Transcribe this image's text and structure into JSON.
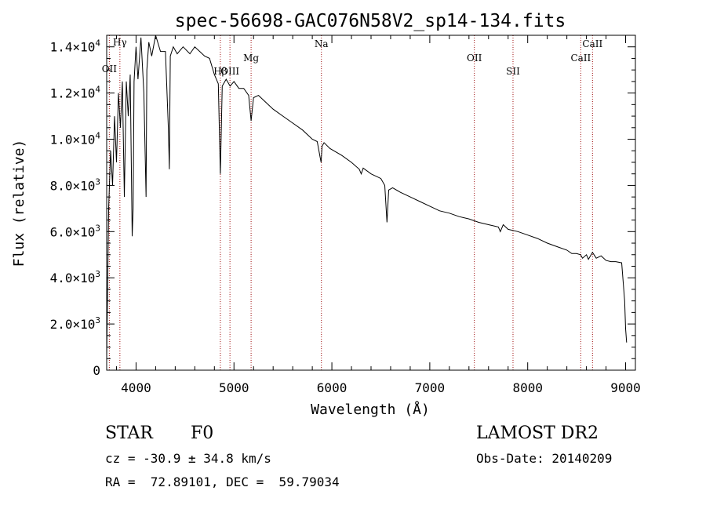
{
  "chart_data": {
    "type": "line",
    "title": "spec-56698-GAC076N58V2_sp14-134.fits",
    "xlabel": "Wavelength (Å)",
    "ylabel": "Flux (relative)",
    "xlim": [
      3700,
      9100
    ],
    "ylim": [
      0,
      14500
    ],
    "x_ticks": [
      4000,
      5000,
      6000,
      7000,
      8000,
      9000
    ],
    "y_ticks": [
      {
        "value": 0,
        "mant": "0",
        "exp": ""
      },
      {
        "value": 2000,
        "mant": "2.0×10",
        "exp": "3"
      },
      {
        "value": 4000,
        "mant": "4.0×10",
        "exp": "3"
      },
      {
        "value": 6000,
        "mant": "6.0×10",
        "exp": "3"
      },
      {
        "value": 8000,
        "mant": "8.0×10",
        "exp": "3"
      },
      {
        "value": 10000,
        "mant": "1.0×10",
        "exp": "4"
      },
      {
        "value": 12000,
        "mant": "1.2×10",
        "exp": "4"
      },
      {
        "value": 14000,
        "mant": "1.4×10",
        "exp": "4"
      }
    ],
    "series": [
      {
        "x": [
          3700,
          3720,
          3740,
          3760,
          3780,
          3800,
          3820,
          3840,
          3860,
          3880,
          3900,
          3920,
          3940,
          3960,
          3970,
          3980,
          4000,
          4020,
          4050,
          4080,
          4102,
          4110,
          4130,
          4160,
          4200,
          4250,
          4300,
          4330,
          4340,
          4350,
          4380,
          4420,
          4480,
          4550,
          4600,
          4650,
          4700,
          4750,
          4800,
          4840,
          4861,
          4880,
          4920,
          4960,
          5000,
          5050,
          5100,
          5150,
          5175,
          5200,
          5250,
          5300,
          5400,
          5500,
          5600,
          5700,
          5800,
          5850,
          5890,
          5900,
          5920,
          5980,
          6100,
          6200,
          6280,
          6300,
          6320,
          6400,
          6500,
          6540,
          6563,
          6580,
          6620,
          6700,
          6800,
          6900,
          7000,
          7100,
          7200,
          7300,
          7400,
          7500,
          7600,
          7700,
          7720,
          7750,
          7800,
          7900,
          8000,
          8100,
          8200,
          8300,
          8400,
          8450,
          8498,
          8540,
          8560,
          8600,
          8620,
          8662,
          8700,
          8750,
          8800,
          8850,
          8900,
          8960,
          8990,
          9000,
          9010
        ],
        "y": [
          500,
          7000,
          9500,
          8000,
          11000,
          9000,
          12000,
          10500,
          12500,
          7500,
          12500,
          11000,
          12800,
          5800,
          7000,
          12500,
          14000,
          12600,
          14400,
          12000,
          7500,
          13000,
          14200,
          13600,
          14500,
          13800,
          13800,
          10500,
          8700,
          13600,
          14000,
          13700,
          14000,
          13700,
          14000,
          13800,
          13600,
          13500,
          12800,
          12400,
          8500,
          12300,
          12600,
          12300,
          12500,
          12200,
          12200,
          11900,
          10800,
          11800,
          11900,
          11700,
          11300,
          11000,
          10700,
          10400,
          10000,
          9900,
          9000,
          9700,
          9850,
          9600,
          9300,
          9000,
          8700,
          8500,
          8750,
          8500,
          8300,
          8000,
          6400,
          7800,
          7900,
          7700,
          7500,
          7300,
          7100,
          6900,
          6800,
          6650,
          6550,
          6400,
          6300,
          6200,
          6000,
          6300,
          6100,
          6000,
          5850,
          5700,
          5500,
          5350,
          5200,
          5050,
          5050,
          5000,
          4850,
          5000,
          4800,
          5100,
          4850,
          4950,
          4750,
          4700,
          4700,
          4650,
          3000,
          1800,
          1200
        ]
      }
    ],
    "line_markers": [
      {
        "label": "Hγ",
        "x": 3835
      },
      {
        "label": "OII",
        "x": 3727
      },
      {
        "label": "Hβ",
        "x": 4861
      },
      {
        "label": "OIII",
        "x": 4959
      },
      {
        "label": "Mg",
        "x": 5175
      },
      {
        "label": "Na",
        "x": 5893
      },
      {
        "label": "OII",
        "x": 7455
      },
      {
        "label": "SII",
        "x": 7850
      },
      {
        "label": "CaII",
        "x": 8542
      },
      {
        "label": "CaII",
        "x": 8662
      }
    ]
  },
  "info": {
    "class": "STAR",
    "subclass": "F0",
    "survey": "LAMOST DR2",
    "cz": "cz = -30.9 ± 34.8 km/s",
    "obs_date": "Obs-Date: 20140209",
    "radec": "RA =  72.89101, DEC =  59.79034"
  },
  "colors": {
    "line": "#000000",
    "marker": "#a01010",
    "axis": "#000000"
  }
}
